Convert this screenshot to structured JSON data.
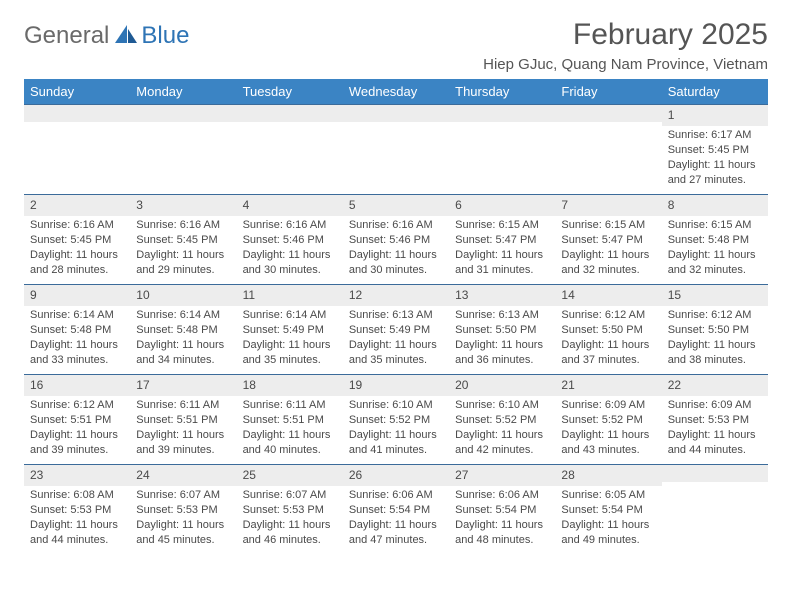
{
  "logo": {
    "general": "General",
    "blue": "Blue"
  },
  "title": "February 2025",
  "location": "Hiep GJuc, Quang Nam Province, Vietnam",
  "colors": {
    "header_bg": "#3b84c4",
    "header_text": "#ffffff",
    "strip_bg": "#ededed",
    "strip_border": "#3b6b9a",
    "body_text": "#4a4a4a",
    "logo_gray": "#6a6a6a",
    "logo_blue": "#2e74b5"
  },
  "dayNames": [
    "Sunday",
    "Monday",
    "Tuesday",
    "Wednesday",
    "Thursday",
    "Friday",
    "Saturday"
  ],
  "weeks": [
    [
      {
        "num": "",
        "lines": []
      },
      {
        "num": "",
        "lines": []
      },
      {
        "num": "",
        "lines": []
      },
      {
        "num": "",
        "lines": []
      },
      {
        "num": "",
        "lines": []
      },
      {
        "num": "",
        "lines": []
      },
      {
        "num": "1",
        "lines": [
          "Sunrise: 6:17 AM",
          "Sunset: 5:45 PM",
          "Daylight: 11 hours and 27 minutes."
        ]
      }
    ],
    [
      {
        "num": "2",
        "lines": [
          "Sunrise: 6:16 AM",
          "Sunset: 5:45 PM",
          "Daylight: 11 hours and 28 minutes."
        ]
      },
      {
        "num": "3",
        "lines": [
          "Sunrise: 6:16 AM",
          "Sunset: 5:45 PM",
          "Daylight: 11 hours and 29 minutes."
        ]
      },
      {
        "num": "4",
        "lines": [
          "Sunrise: 6:16 AM",
          "Sunset: 5:46 PM",
          "Daylight: 11 hours and 30 minutes."
        ]
      },
      {
        "num": "5",
        "lines": [
          "Sunrise: 6:16 AM",
          "Sunset: 5:46 PM",
          "Daylight: 11 hours and 30 minutes."
        ]
      },
      {
        "num": "6",
        "lines": [
          "Sunrise: 6:15 AM",
          "Sunset: 5:47 PM",
          "Daylight: 11 hours and 31 minutes."
        ]
      },
      {
        "num": "7",
        "lines": [
          "Sunrise: 6:15 AM",
          "Sunset: 5:47 PM",
          "Daylight: 11 hours and 32 minutes."
        ]
      },
      {
        "num": "8",
        "lines": [
          "Sunrise: 6:15 AM",
          "Sunset: 5:48 PM",
          "Daylight: 11 hours and 32 minutes."
        ]
      }
    ],
    [
      {
        "num": "9",
        "lines": [
          "Sunrise: 6:14 AM",
          "Sunset: 5:48 PM",
          "Daylight: 11 hours and 33 minutes."
        ]
      },
      {
        "num": "10",
        "lines": [
          "Sunrise: 6:14 AM",
          "Sunset: 5:48 PM",
          "Daylight: 11 hours and 34 minutes."
        ]
      },
      {
        "num": "11",
        "lines": [
          "Sunrise: 6:14 AM",
          "Sunset: 5:49 PM",
          "Daylight: 11 hours and 35 minutes."
        ]
      },
      {
        "num": "12",
        "lines": [
          "Sunrise: 6:13 AM",
          "Sunset: 5:49 PM",
          "Daylight: 11 hours and 35 minutes."
        ]
      },
      {
        "num": "13",
        "lines": [
          "Sunrise: 6:13 AM",
          "Sunset: 5:50 PM",
          "Daylight: 11 hours and 36 minutes."
        ]
      },
      {
        "num": "14",
        "lines": [
          "Sunrise: 6:12 AM",
          "Sunset: 5:50 PM",
          "Daylight: 11 hours and 37 minutes."
        ]
      },
      {
        "num": "15",
        "lines": [
          "Sunrise: 6:12 AM",
          "Sunset: 5:50 PM",
          "Daylight: 11 hours and 38 minutes."
        ]
      }
    ],
    [
      {
        "num": "16",
        "lines": [
          "Sunrise: 6:12 AM",
          "Sunset: 5:51 PM",
          "Daylight: 11 hours and 39 minutes."
        ]
      },
      {
        "num": "17",
        "lines": [
          "Sunrise: 6:11 AM",
          "Sunset: 5:51 PM",
          "Daylight: 11 hours and 39 minutes."
        ]
      },
      {
        "num": "18",
        "lines": [
          "Sunrise: 6:11 AM",
          "Sunset: 5:51 PM",
          "Daylight: 11 hours and 40 minutes."
        ]
      },
      {
        "num": "19",
        "lines": [
          "Sunrise: 6:10 AM",
          "Sunset: 5:52 PM",
          "Daylight: 11 hours and 41 minutes."
        ]
      },
      {
        "num": "20",
        "lines": [
          "Sunrise: 6:10 AM",
          "Sunset: 5:52 PM",
          "Daylight: 11 hours and 42 minutes."
        ]
      },
      {
        "num": "21",
        "lines": [
          "Sunrise: 6:09 AM",
          "Sunset: 5:52 PM",
          "Daylight: 11 hours and 43 minutes."
        ]
      },
      {
        "num": "22",
        "lines": [
          "Sunrise: 6:09 AM",
          "Sunset: 5:53 PM",
          "Daylight: 11 hours and 44 minutes."
        ]
      }
    ],
    [
      {
        "num": "23",
        "lines": [
          "Sunrise: 6:08 AM",
          "Sunset: 5:53 PM",
          "Daylight: 11 hours and 44 minutes."
        ]
      },
      {
        "num": "24",
        "lines": [
          "Sunrise: 6:07 AM",
          "Sunset: 5:53 PM",
          "Daylight: 11 hours and 45 minutes."
        ]
      },
      {
        "num": "25",
        "lines": [
          "Sunrise: 6:07 AM",
          "Sunset: 5:53 PM",
          "Daylight: 11 hours and 46 minutes."
        ]
      },
      {
        "num": "26",
        "lines": [
          "Sunrise: 6:06 AM",
          "Sunset: 5:54 PM",
          "Daylight: 11 hours and 47 minutes."
        ]
      },
      {
        "num": "27",
        "lines": [
          "Sunrise: 6:06 AM",
          "Sunset: 5:54 PM",
          "Daylight: 11 hours and 48 minutes."
        ]
      },
      {
        "num": "28",
        "lines": [
          "Sunrise: 6:05 AM",
          "Sunset: 5:54 PM",
          "Daylight: 11 hours and 49 minutes."
        ]
      },
      {
        "num": "",
        "lines": []
      }
    ]
  ]
}
